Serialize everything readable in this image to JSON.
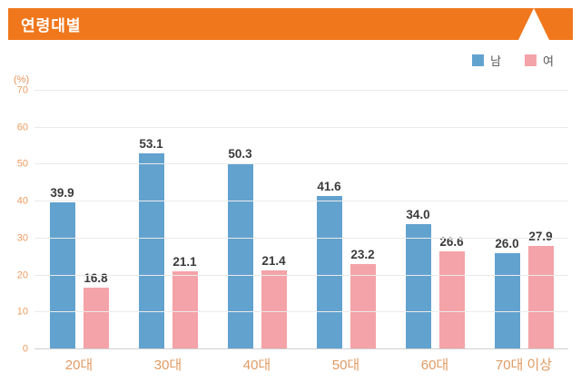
{
  "header": {
    "title": "연령대별"
  },
  "colors": {
    "header_bg": "#f0771c",
    "male_bar": "#62a2cf",
    "female_bar": "#f4a3a8",
    "tick_text": "#ec9b5f",
    "value_text": "#3a3a3a"
  },
  "chart_data": {
    "type": "bar",
    "title": "연령대별",
    "categories": [
      "20대",
      "30대",
      "40대",
      "50대",
      "60대",
      "70대 이상"
    ],
    "series": [
      {
        "name": "남",
        "color": "#62a2cf",
        "values": [
          39.9,
          53.1,
          50.3,
          41.6,
          34.0,
          26.0
        ]
      },
      {
        "name": "여",
        "color": "#f4a3a8",
        "values": [
          16.8,
          21.1,
          21.4,
          23.2,
          26.6,
          27.9
        ]
      }
    ],
    "xlabel": "",
    "ylabel": "(%)",
    "ylim": [
      0,
      70
    ],
    "ytick_step": 10,
    "grid": true,
    "legend_position": "top-right"
  }
}
